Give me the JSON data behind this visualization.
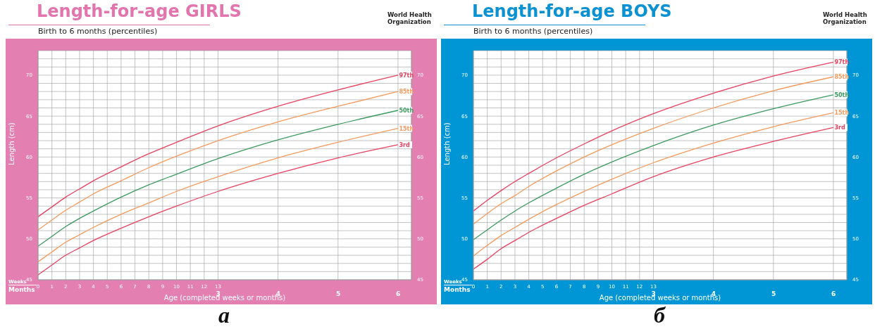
{
  "chart_data": [
    {
      "type": "line",
      "title": "Length-for-age GIRLS",
      "subtitle": "Birth to 6 months (percentiles)",
      "xlabel": "Age (completed weeks or months)",
      "ylabel": "Length (cm)",
      "annotations": [
        "World Health Organization",
        "Weeks",
        "Months",
        "а"
      ],
      "x": [
        0,
        1,
        2,
        3,
        4,
        6,
        8,
        10,
        13,
        17.333,
        21.667,
        26
      ],
      "series": [
        {
          "name": "97th",
          "color": "#e8405f",
          "values": [
            52.7,
            53.9,
            55.1,
            56.1,
            57.1,
            58.8,
            60.4,
            61.8,
            63.8,
            66.2,
            68.2,
            70.0
          ]
        },
        {
          "name": "85th",
          "color": "#f59a5c",
          "values": [
            51.1,
            52.3,
            53.5,
            54.5,
            55.5,
            57.1,
            58.7,
            60.1,
            62.0,
            64.3,
            66.2,
            68.0
          ]
        },
        {
          "name": "50th",
          "color": "#3b9a5e",
          "values": [
            49.1,
            50.3,
            51.5,
            52.5,
            53.4,
            55.1,
            56.6,
            57.9,
            59.8,
            62.1,
            64.0,
            65.7
          ]
        },
        {
          "name": "15th",
          "color": "#f59a5c",
          "values": [
            47.2,
            48.4,
            49.6,
            50.5,
            51.4,
            53.0,
            54.4,
            55.8,
            57.6,
            59.9,
            61.8,
            63.5
          ]
        },
        {
          "name": "3rd",
          "color": "#e8405f",
          "values": [
            45.6,
            46.8,
            48.0,
            48.9,
            49.8,
            51.3,
            52.7,
            54.0,
            55.8,
            58.0,
            59.9,
            61.5
          ]
        }
      ],
      "xlim": [
        0,
        26.97
      ],
      "xticks": [
        0,
        1,
        2,
        3,
        4,
        5,
        6,
        7,
        8,
        9,
        10,
        11,
        12,
        13,
        {
          "value": 17.333,
          "label": null
        },
        {
          "value": 21.667,
          "label": null
        },
        {
          "value": 26,
          "label": null
        }
      ],
      "x2lim": [
        0,
        6.22
      ],
      "x2ticks": [
        3,
        4,
        5,
        6
      ],
      "ylim": [
        45,
        73
      ],
      "yticks": [
        45,
        {
          "value": 46,
          "label": null
        },
        {
          "value": 47,
          "label": null
        },
        {
          "value": 48,
          "label": null
        },
        {
          "value": 49,
          "label": null
        },
        50,
        {
          "value": 51,
          "label": null
        },
        {
          "value": 52,
          "label": null
        },
        {
          "value": 53,
          "label": null
        },
        {
          "value": 54,
          "label": null
        },
        55,
        {
          "value": 56,
          "label": null
        },
        {
          "value": 57,
          "label": null
        },
        {
          "value": 58,
          "label": null
        },
        {
          "value": 59,
          "label": null
        },
        60,
        {
          "value": 61,
          "label": null
        },
        {
          "value": 62,
          "label": null
        },
        {
          "value": 63,
          "label": null
        },
        {
          "value": 64,
          "label": null
        },
        65,
        {
          "value": 66,
          "label": null
        },
        {
          "value": 67,
          "label": null
        },
        {
          "value": 68,
          "label": null
        },
        {
          "value": 69,
          "label": null
        },
        70,
        {
          "value": 71,
          "label": null
        },
        {
          "value": 72,
          "label": null
        }
      ],
      "y2lim": [
        45,
        73
      ],
      "y2ticks": [
        45,
        50,
        55,
        60,
        65,
        70
      ],
      "grid": true,
      "marker": "none"
    },
    {
      "type": "line",
      "title": "Length-for-age BOYS",
      "subtitle": "Birth to 6 months (percentiles)",
      "xlabel": "Age (completed weeks or months)",
      "ylabel": "Length (cm)",
      "annotations": [
        "World Health Organization",
        "Weeks",
        "Months",
        "б"
      ],
      "x": [
        0,
        1,
        2,
        3,
        4,
        6,
        8,
        10,
        13,
        17.333,
        21.667,
        26
      ],
      "series": [
        {
          "name": "97th",
          "color": "#e8405f",
          "values": [
            53.4,
            54.7,
            55.9,
            57.0,
            58.0,
            59.9,
            61.6,
            63.2,
            65.3,
            67.8,
            69.9,
            71.6
          ]
        },
        {
          "name": "85th",
          "color": "#f59a5c",
          "values": [
            51.8,
            53.1,
            54.3,
            55.3,
            56.4,
            58.3,
            60.0,
            61.5,
            63.5,
            66.0,
            68.1,
            69.8
          ]
        },
        {
          "name": "50th",
          "color": "#3b9a5e",
          "values": [
            49.9,
            51.1,
            52.3,
            53.4,
            54.4,
            56.2,
            57.9,
            59.4,
            61.4,
            63.9,
            65.9,
            67.6
          ]
        },
        {
          "name": "15th",
          "color": "#f59a5c",
          "values": [
            47.9,
            49.2,
            50.4,
            51.4,
            52.4,
            54.2,
            55.8,
            57.3,
            59.3,
            61.7,
            63.7,
            65.4
          ]
        },
        {
          "name": "3rd",
          "color": "#e8405f",
          "values": [
            46.3,
            47.5,
            48.8,
            49.8,
            50.8,
            52.5,
            54.1,
            55.5,
            57.6,
            60.0,
            61.9,
            63.6
          ]
        }
      ],
      "xlim": [
        0,
        26.97
      ],
      "xticks": [
        0,
        1,
        2,
        3,
        4,
        5,
        6,
        7,
        8,
        9,
        10,
        11,
        12,
        13,
        {
          "value": 17.333,
          "label": null
        },
        {
          "value": 21.667,
          "label": null
        },
        {
          "value": 26,
          "label": null
        }
      ],
      "x2lim": [
        0,
        6.22
      ],
      "x2ticks": [
        3,
        4,
        5,
        6
      ],
      "ylim": [
        45,
        73
      ],
      "yticks": [
        45,
        {
          "value": 46,
          "label": null
        },
        {
          "value": 47,
          "label": null
        },
        {
          "value": 48,
          "label": null
        },
        {
          "value": 49,
          "label": null
        },
        50,
        {
          "value": 51,
          "label": null
        },
        {
          "value": 52,
          "label": null
        },
        {
          "value": 53,
          "label": null
        },
        {
          "value": 54,
          "label": null
        },
        55,
        {
          "value": 56,
          "label": null
        },
        {
          "value": 57,
          "label": null
        },
        {
          "value": 58,
          "label": null
        },
        {
          "value": 59,
          "label": null
        },
        60,
        {
          "value": 61,
          "label": null
        },
        {
          "value": 62,
          "label": null
        },
        {
          "value": 63,
          "label": null
        },
        {
          "value": 64,
          "label": null
        },
        65,
        {
          "value": 66,
          "label": null
        },
        {
          "value": 67,
          "label": null
        },
        {
          "value": 68,
          "label": null
        },
        {
          "value": 69,
          "label": null
        },
        70,
        {
          "value": 71,
          "label": null
        },
        {
          "value": 72,
          "label": null
        }
      ],
      "y2lim": [
        45,
        73
      ],
      "y2ticks": [
        45,
        50,
        55,
        60,
        65,
        70
      ],
      "grid": true,
      "marker": "none"
    }
  ]
}
